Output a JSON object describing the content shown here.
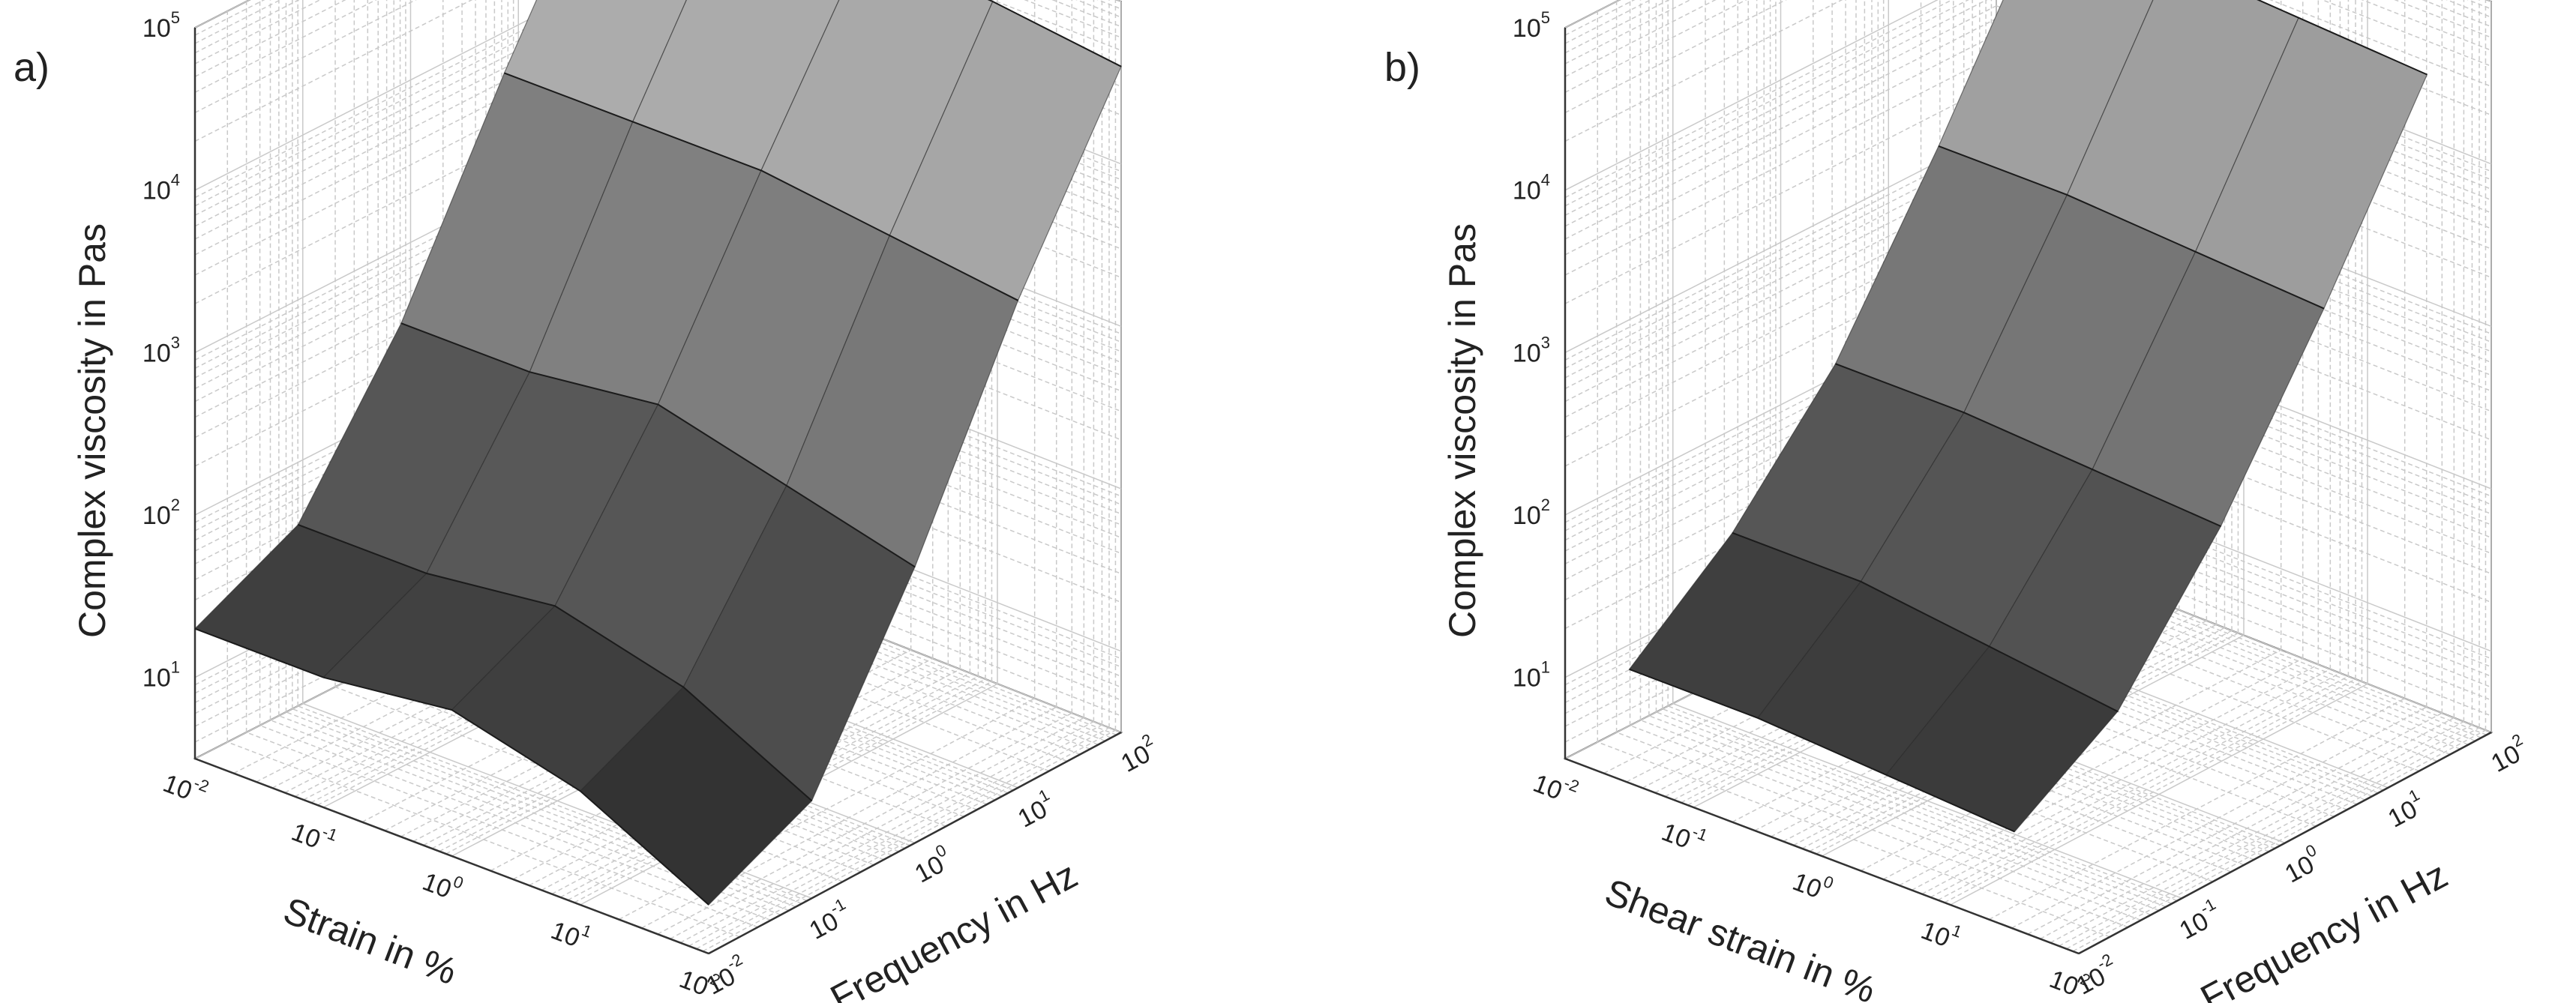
{
  "chart_data": [
    {
      "type": "surface3d",
      "panel_label": "a)",
      "zlabel": "Complex viscosity in Pas",
      "xlabel": "Strain in %",
      "ylabel": "Frequency in Hz",
      "z_log": true,
      "zlim": [
        0.5,
        5
      ],
      "z_ticks": [
        {
          "b": "10",
          "e": "1"
        },
        {
          "b": "10",
          "e": "2"
        },
        {
          "b": "10",
          "e": "3"
        },
        {
          "b": "10",
          "e": "4"
        },
        {
          "b": "10",
          "e": "5"
        }
      ],
      "x_log": true,
      "xlim": [
        -2,
        2
      ],
      "x_ticks": [
        {
          "b": "10",
          "e": "-2"
        },
        {
          "b": "10",
          "e": "-1"
        },
        {
          "b": "10",
          "e": "0"
        },
        {
          "b": "10",
          "e": "1"
        },
        {
          "b": "10",
          "e": "2"
        }
      ],
      "y_log": true,
      "ylim": [
        -2,
        2
      ],
      "y_ticks": [
        {
          "b": "10",
          "e": "-2"
        },
        {
          "b": "10",
          "e": "-1"
        },
        {
          "b": "10",
          "e": "0"
        },
        {
          "b": "10",
          "e": "1"
        },
        {
          "b": "10",
          "e": "2"
        }
      ],
      "grid": true,
      "colormap": "grayscale",
      "surface_x_log10": [
        -2,
        -1,
        0,
        1,
        2
      ],
      "surface_y_log10": [
        -2,
        -1,
        0,
        1,
        2
      ],
      "surface_z_log10": [
        [
          4.8,
          3.7,
          2.5,
          1.6,
          1.3
        ],
        [
          4.8,
          3.7,
          2.5,
          1.6,
          1.3
        ],
        [
          4.75,
          3.7,
          2.6,
          1.7,
          1.4
        ],
        [
          4.7,
          3.6,
          2.4,
          1.5,
          1.2
        ],
        [
          4.6,
          3.5,
          2.2,
          1.1,
          0.8
        ]
      ]
    },
    {
      "type": "surface3d",
      "panel_label": "b)",
      "zlabel": "Complex viscosity in Pas",
      "xlabel": "Shear strain in %",
      "ylabel": "Frequency in Hz",
      "z_log": true,
      "zlim": [
        0.5,
        5
      ],
      "z_ticks": [
        {
          "b": "10",
          "e": "1"
        },
        {
          "b": "10",
          "e": "2"
        },
        {
          "b": "10",
          "e": "3"
        },
        {
          "b": "10",
          "e": "4"
        },
        {
          "b": "10",
          "e": "5"
        }
      ],
      "x_log": true,
      "xlim": [
        -2,
        2
      ],
      "x_ticks": [
        {
          "b": "10",
          "e": "-2"
        },
        {
          "b": "10",
          "e": "-1"
        },
        {
          "b": "10",
          "e": "0"
        },
        {
          "b": "10",
          "e": "1"
        },
        {
          "b": "10",
          "e": "2"
        }
      ],
      "y_log": true,
      "ylim": [
        -2,
        2
      ],
      "y_ticks": [
        {
          "b": "10",
          "e": "-2"
        },
        {
          "b": "10",
          "e": "-1"
        },
        {
          "b": "10",
          "e": "0"
        },
        {
          "b": "10",
          "e": "1"
        },
        {
          "b": "10",
          "e": "2"
        }
      ],
      "grid": true,
      "colormap": "grayscale",
      "surface_x_log10": [
        -1.5,
        -0.5,
        0.5,
        1.5
      ],
      "surface_y_log10": [
        -2,
        -1,
        0,
        1,
        2
      ],
      "surface_z_log10": [
        [
          4.5,
          3.4,
          2.4,
          1.7,
          1.2
        ],
        [
          4.5,
          3.4,
          2.4,
          1.7,
          1.2
        ],
        [
          4.45,
          3.35,
          2.35,
          1.6,
          1.15
        ],
        [
          4.4,
          3.3,
          2.3,
          1.5,
          1.1
        ]
      ]
    }
  ]
}
